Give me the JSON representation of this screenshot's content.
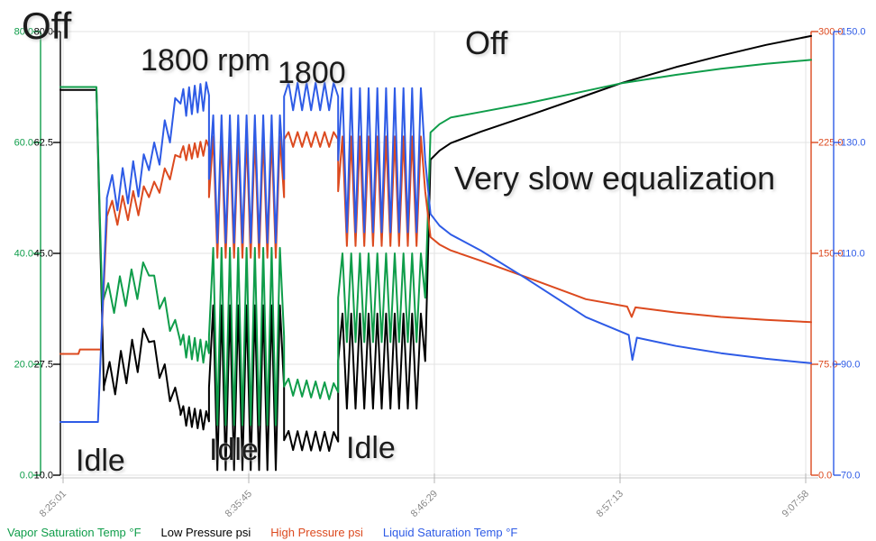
{
  "legend": {
    "items": [
      {
        "label": "Vapor Saturation Temp °F",
        "color": "#0f9d4a"
      },
      {
        "label": "Low Pressure psi",
        "color": "#000000"
      },
      {
        "label": "High Pressure psi",
        "color": "#dc4a1f"
      },
      {
        "label": "Liquid Saturation Temp °F",
        "color": "#2e5be6"
      }
    ]
  },
  "annotations": [
    {
      "text": "Off"
    },
    {
      "text": "1800 rpm"
    },
    {
      "text": "1800"
    },
    {
      "text": "Off"
    },
    {
      "text": "Very slow equalization"
    },
    {
      "text": "Idle"
    },
    {
      "text": "Idle"
    },
    {
      "text": "Idle"
    }
  ],
  "chart_data": {
    "type": "line",
    "title": "",
    "xlabel": "",
    "grid": true,
    "x_ticks": [
      {
        "label": "8:25:01",
        "u": 0.0036
      },
      {
        "label": "8:35:45",
        "u": 0.2509
      },
      {
        "label": "8:46:29",
        "u": 0.4982
      },
      {
        "label": "8:57:13",
        "u": 0.7455
      },
      {
        "label": "9:07:58",
        "u": 0.9928
      }
    ],
    "axes": {
      "green": {
        "label": "Vapor Saturation Temp °F",
        "range": [
          0,
          80
        ],
        "ticks": [
          80,
          60,
          40,
          20,
          0
        ],
        "color": "#0f9d4a"
      },
      "black": {
        "label": "Low Pressure psi",
        "range": [
          10,
          80
        ],
        "ticks": [
          80,
          62.5,
          45,
          27.5,
          10
        ],
        "color": "#000000"
      },
      "red": {
        "label": "High Pressure psi",
        "range": [
          0,
          300
        ],
        "ticks": [
          300,
          225,
          150,
          75,
          0
        ],
        "color": "#dc4a1f"
      },
      "blue": {
        "label": "Liquid Saturation Temp °F",
        "range": [
          70,
          150
        ],
        "ticks": [
          150,
          130,
          110,
          90,
          70
        ],
        "color": "#2e5be6"
      }
    },
    "phase_format": "[u_start, u_end, value_start, value_end, oscillation_amplitude, oscillation_cycles]",
    "series": [
      {
        "name": "Low Pressure psi",
        "axis": "black",
        "color": "#000000",
        "phases": [
          [
            0.0,
            0.048,
            70.8,
            70.8,
            0,
            0
          ],
          [
            0.048,
            0.058,
            70.8,
            23.4,
            0,
            0
          ],
          [
            0.058,
            0.118,
            24,
            31,
            3,
            4
          ],
          [
            0.118,
            0.16,
            31,
            20,
            2,
            3
          ],
          [
            0.16,
            0.198,
            19.5,
            18.5,
            1.5,
            5
          ],
          [
            0.198,
            0.298,
            23.8,
            23.8,
            13,
            9
          ],
          [
            0.298,
            0.37,
            15.5,
            15.3,
            1.5,
            6
          ],
          [
            0.37,
            0.486,
            28,
            28,
            7.5,
            10
          ],
          [
            0.486,
            0.493,
            28,
            59.8,
            0,
            0
          ],
          [
            0.493,
            0.505,
            59.8,
            61.2,
            0,
            0
          ],
          [
            0.505,
            0.52,
            61.2,
            62.4,
            0,
            0
          ],
          [
            0.52,
            0.56,
            62.4,
            64.2,
            0,
            0
          ],
          [
            0.56,
            0.62,
            64.2,
            66.6,
            0,
            0
          ],
          [
            0.62,
            0.7,
            66.6,
            69.9,
            0,
            0
          ],
          [
            0.7,
            0.748,
            69.9,
            71.9,
            0,
            0
          ],
          [
            0.748,
            0.82,
            71.9,
            74.4,
            0,
            0
          ],
          [
            0.82,
            0.88,
            74.4,
            76.2,
            0,
            0
          ],
          [
            0.88,
            0.94,
            76.2,
            77.9,
            0,
            0
          ],
          [
            0.94,
            1.0,
            77.9,
            79.3,
            0,
            0
          ]
        ]
      },
      {
        "name": "Vapor Saturation Temp °F",
        "axis": "green",
        "color": "#0f9d4a",
        "phases": [
          [
            0.0,
            0.048,
            70,
            70,
            0,
            0
          ],
          [
            0.048,
            0.056,
            70,
            30,
            0,
            0
          ],
          [
            0.056,
            0.118,
            31,
            36,
            3,
            4
          ],
          [
            0.118,
            0.16,
            36,
            24,
            2,
            3
          ],
          [
            0.16,
            0.198,
            23.5,
            22,
            2,
            5
          ],
          [
            0.198,
            0.298,
            25,
            25,
            16,
            9
          ],
          [
            0.298,
            0.37,
            16,
            15,
            1.5,
            6
          ],
          [
            0.37,
            0.486,
            32,
            32,
            8,
            10
          ],
          [
            0.486,
            0.493,
            32,
            61.8,
            0,
            0
          ],
          [
            0.493,
            0.505,
            61.8,
            63.3,
            0,
            0
          ],
          [
            0.505,
            0.52,
            63.3,
            64.5,
            0,
            0
          ],
          [
            0.52,
            0.56,
            64.5,
            65.5,
            0,
            0
          ],
          [
            0.56,
            0.62,
            65.5,
            67.0,
            0,
            0
          ],
          [
            0.62,
            0.7,
            67.0,
            69.3,
            0,
            0
          ],
          [
            0.7,
            0.748,
            69.3,
            70.7,
            0,
            0
          ],
          [
            0.748,
            0.82,
            70.7,
            72.2,
            0,
            0
          ],
          [
            0.82,
            0.88,
            72.2,
            73.3,
            0,
            0
          ],
          [
            0.88,
            0.94,
            73.3,
            74.2,
            0,
            0
          ],
          [
            0.94,
            1.0,
            74.2,
            74.9,
            0,
            0
          ]
        ]
      },
      {
        "name": "High Pressure psi",
        "axis": "red",
        "color": "#dc4a1f",
        "phases": [
          [
            0.0,
            0.024,
            82,
            82,
            0,
            0
          ],
          [
            0.024,
            0.026,
            82,
            85,
            0,
            0
          ],
          [
            0.026,
            0.054,
            85,
            85,
            0,
            0
          ],
          [
            0.054,
            0.062,
            85,
            173,
            0,
            0
          ],
          [
            0.062,
            0.118,
            175,
            188,
            9,
            4
          ],
          [
            0.118,
            0.16,
            188,
            215,
            6,
            3
          ],
          [
            0.16,
            0.198,
            217,
            222,
            5,
            5
          ],
          [
            0.198,
            0.298,
            188,
            188,
            41,
            9
          ],
          [
            0.298,
            0.37,
            227,
            227,
            5,
            6
          ],
          [
            0.37,
            0.486,
            192,
            192,
            37,
            10
          ],
          [
            0.486,
            0.493,
            192,
            161,
            0,
            0
          ],
          [
            0.493,
            0.505,
            161,
            156,
            0,
            0
          ],
          [
            0.505,
            0.52,
            156,
            152,
            0,
            0
          ],
          [
            0.52,
            0.56,
            152,
            145,
            0,
            0
          ],
          [
            0.56,
            0.62,
            145,
            134,
            0,
            0
          ],
          [
            0.62,
            0.7,
            134,
            119,
            0,
            0
          ],
          [
            0.7,
            0.755,
            119,
            114,
            0,
            0
          ],
          [
            0.755,
            0.761,
            114,
            107,
            0,
            0
          ],
          [
            0.761,
            0.766,
            107,
            113.5,
            0,
            0
          ],
          [
            0.766,
            0.82,
            113.5,
            110,
            0,
            0
          ],
          [
            0.82,
            0.88,
            110,
            107,
            0,
            0
          ],
          [
            0.88,
            0.94,
            107,
            105,
            0,
            0
          ],
          [
            0.94,
            1.0,
            105,
            103.5,
            0,
            0
          ]
        ]
      },
      {
        "name": "Liquid Saturation Temp °F",
        "axis": "blue",
        "color": "#2e5be6",
        "phases": [
          [
            0.0,
            0.05,
            79.6,
            79.6,
            0,
            0
          ],
          [
            0.05,
            0.062,
            79.6,
            119.4,
            0,
            0
          ],
          [
            0.062,
            0.118,
            120,
            125,
            3.5,
            4
          ],
          [
            0.118,
            0.16,
            125,
            137,
            3,
            3
          ],
          [
            0.16,
            0.198,
            137,
            138.5,
            2.5,
            5
          ],
          [
            0.198,
            0.298,
            123.4,
            123.4,
            11.5,
            9
          ],
          [
            0.298,
            0.37,
            138.3,
            138.3,
            2.5,
            6
          ],
          [
            0.37,
            0.486,
            126.8,
            126.8,
            13,
            10
          ],
          [
            0.486,
            0.493,
            126.8,
            117.1,
            0,
            0
          ],
          [
            0.493,
            0.505,
            117.1,
            115,
            0,
            0
          ],
          [
            0.505,
            0.52,
            115,
            113.4,
            0,
            0
          ],
          [
            0.52,
            0.56,
            113.4,
            110.5,
            0,
            0
          ],
          [
            0.56,
            0.62,
            110.5,
            105.5,
            0,
            0
          ],
          [
            0.62,
            0.7,
            105.5,
            98.5,
            0,
            0
          ],
          [
            0.7,
            0.757,
            98.5,
            95.3,
            0,
            0
          ],
          [
            0.757,
            0.762,
            95.3,
            90.8,
            0,
            0
          ],
          [
            0.762,
            0.768,
            90.8,
            94.8,
            0,
            0
          ],
          [
            0.768,
            0.82,
            94.8,
            93.3,
            0,
            0
          ],
          [
            0.82,
            0.88,
            93.3,
            92.0,
            0,
            0
          ],
          [
            0.88,
            0.94,
            92.0,
            91.0,
            0,
            0
          ],
          [
            0.94,
            1.0,
            91.0,
            90.2,
            0,
            0
          ]
        ]
      }
    ]
  }
}
